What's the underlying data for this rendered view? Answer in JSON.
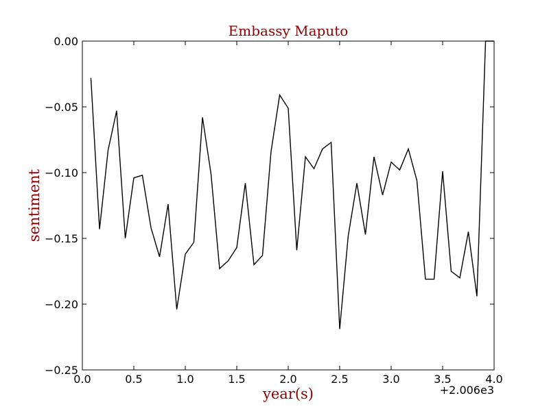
{
  "chart_data": {
    "type": "line",
    "title": "Embassy Maputo",
    "xlabel": "year(s)",
    "ylabel": "sentiment",
    "x_offset_label": "+2.006e3",
    "xlim": [
      0.0,
      4.0
    ],
    "ylim": [
      -0.25,
      0.0
    ],
    "x_ticks": [
      0.0,
      0.5,
      1.0,
      1.5,
      2.0,
      2.5,
      3.0,
      3.5,
      4.0
    ],
    "x_tick_labels": [
      "0.0",
      "0.5",
      "1.0",
      "1.5",
      "2.0",
      "2.5",
      "3.0",
      "3.5",
      "4.0"
    ],
    "y_ticks": [
      0.0,
      -0.05,
      -0.1,
      -0.15,
      -0.2,
      -0.25
    ],
    "y_tick_labels": [
      "0.00",
      "−0.05",
      "−0.10",
      "−0.15",
      "−0.20",
      "−0.25"
    ],
    "grid": false,
    "series": [
      {
        "line_color": "#000000",
        "x": [
          0.083,
          0.167,
          0.25,
          0.333,
          0.417,
          0.5,
          0.583,
          0.667,
          0.75,
          0.833,
          0.917,
          1.0,
          1.083,
          1.167,
          1.25,
          1.333,
          1.417,
          1.5,
          1.583,
          1.667,
          1.75,
          1.833,
          1.917,
          2.0,
          2.083,
          2.167,
          2.25,
          2.333,
          2.417,
          2.5,
          2.583,
          2.667,
          2.75,
          2.833,
          2.917,
          3.0,
          3.083,
          3.167,
          3.25,
          3.333,
          3.417,
          3.5,
          3.583,
          3.667,
          3.75,
          3.833,
          3.917,
          4.0
        ],
        "y": [
          -0.028,
          -0.143,
          -0.083,
          -0.053,
          -0.15,
          -0.104,
          -0.102,
          -0.142,
          -0.164,
          -0.124,
          -0.204,
          -0.162,
          -0.153,
          -0.058,
          -0.101,
          -0.173,
          -0.167,
          -0.157,
          -0.108,
          -0.17,
          -0.163,
          -0.084,
          -0.041,
          -0.051,
          -0.159,
          -0.088,
          -0.097,
          -0.082,
          -0.077,
          -0.219,
          -0.148,
          -0.108,
          -0.147,
          -0.088,
          -0.117,
          -0.092,
          -0.098,
          -0.082,
          -0.106,
          -0.181,
          -0.181,
          -0.099,
          -0.175,
          -0.18,
          -0.145,
          -0.194,
          0.0,
          0.0
        ]
      }
    ]
  },
  "colors": {
    "title": "#8b0000",
    "axis_labels": "#8b0000",
    "line": "#000000",
    "axes": "#000000",
    "background": "#ffffff"
  }
}
